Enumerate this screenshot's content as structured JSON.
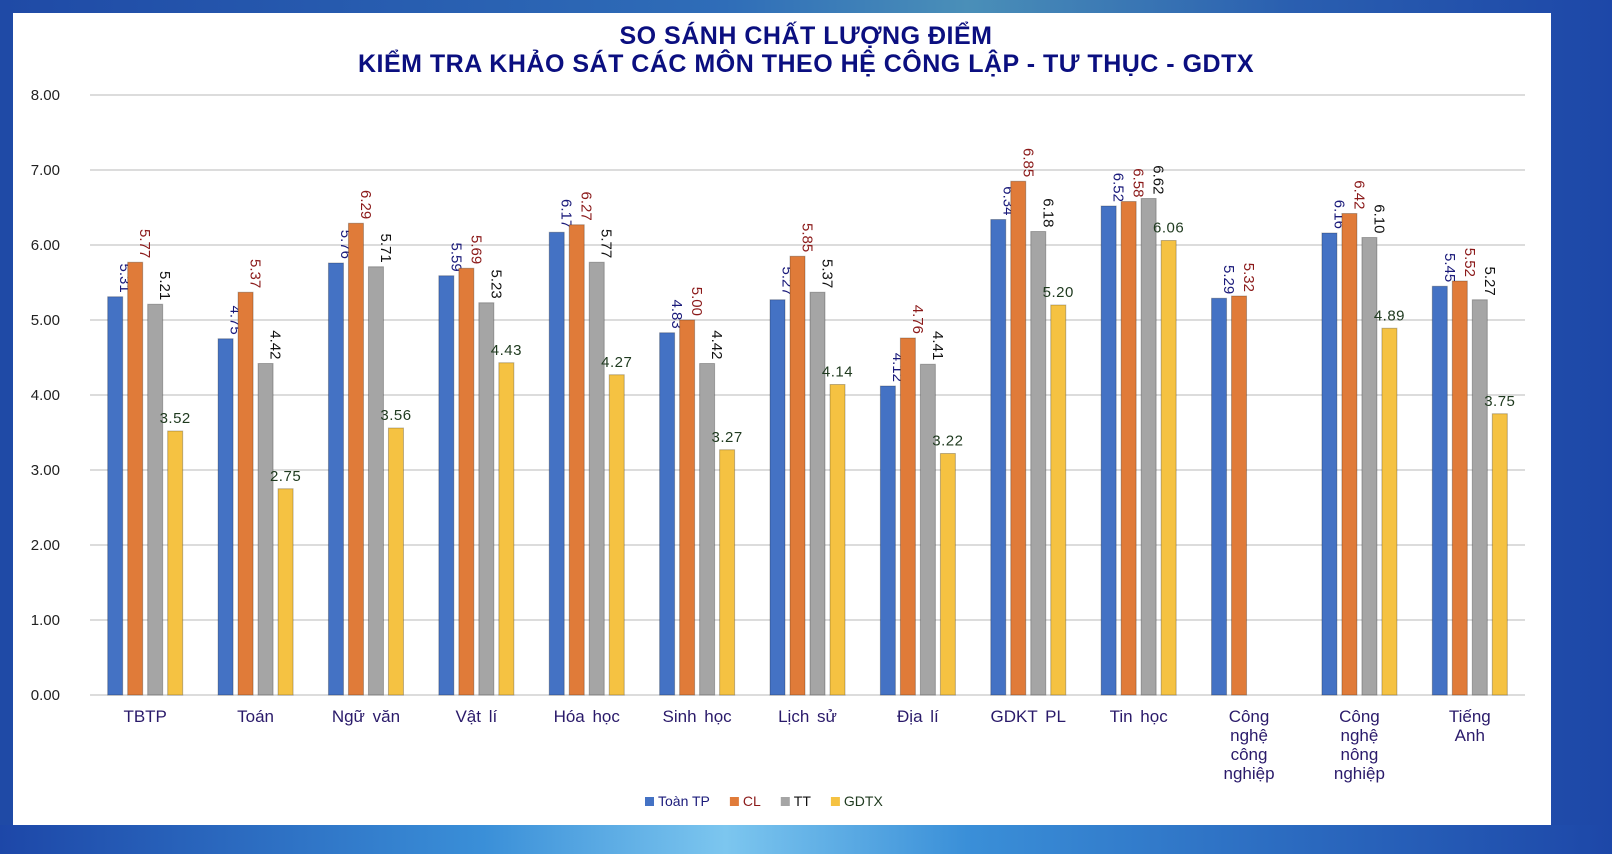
{
  "chart_data": {
    "type": "bar",
    "title": [
      "SO SÁNH CHẤT LƯỢNG ĐIỂM",
      "KIỂM TRA KHẢO SÁT CÁC MÔN THEO HỆ CÔNG LẬP - TƯ THỤC - GDTX"
    ],
    "categories": [
      [
        "TBTP"
      ],
      [
        "Toán"
      ],
      [
        "Ngữ văn"
      ],
      [
        "Vật lí"
      ],
      [
        "Hóa học"
      ],
      [
        "Sinh học"
      ],
      [
        "Lịch sử"
      ],
      [
        "Địa lí"
      ],
      [
        "GDKT PL"
      ],
      [
        "Tin học"
      ],
      [
        "Công",
        "nghệ",
        "công",
        "nghiệp"
      ],
      [
        "Công",
        "nghệ",
        "nông",
        "nghiệp"
      ],
      [
        "Tiếng",
        "Anh"
      ]
    ],
    "series": [
      {
        "name": "Toàn TP",
        "color": "#4472c4",
        "label_color": "#1a1a7a",
        "values": [
          5.31,
          4.75,
          5.76,
          5.59,
          6.17,
          4.83,
          5.27,
          4.12,
          6.34,
          6.52,
          5.29,
          6.16,
          5.45
        ]
      },
      {
        "name": "CL",
        "color": "#e07b39",
        "label_color": "#8b1a1a",
        "values": [
          5.77,
          5.37,
          6.29,
          5.69,
          6.27,
          5.0,
          5.85,
          4.76,
          6.85,
          6.58,
          5.32,
          6.42,
          5.52
        ]
      },
      {
        "name": "TT",
        "color": "#a5a5a5",
        "label_color": "#111111",
        "values": [
          5.21,
          4.42,
          5.71,
          5.23,
          5.77,
          4.42,
          5.37,
          4.41,
          6.18,
          6.62,
          null,
          6.1,
          5.27
        ]
      },
      {
        "name": "GDTX",
        "color": "#f5c242",
        "label_color": "#1f3a1f",
        "values": [
          3.52,
          2.75,
          3.56,
          4.43,
          4.27,
          3.27,
          4.14,
          3.22,
          5.2,
          6.06,
          null,
          4.89,
          3.75
        ]
      }
    ],
    "ylim": [
      0,
      8
    ],
    "yticks": [
      "0.00",
      "1.00",
      "2.00",
      "3.00",
      "4.00",
      "5.00",
      "6.00",
      "7.00",
      "8.00"
    ],
    "grid": true,
    "legend_position": "bottom",
    "xlabel": "",
    "ylabel": ""
  }
}
